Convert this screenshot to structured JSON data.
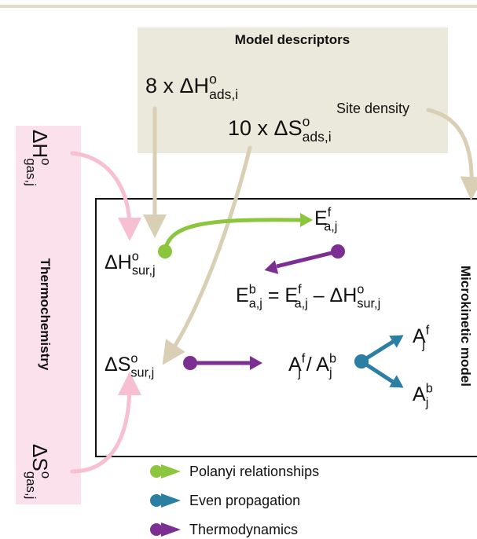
{
  "descriptors": {
    "title": "Model descriptors",
    "enthalpy": [
      {
        "text": "8 x ΔH",
        "pos": "base"
      },
      {
        "text": "o",
        "pos": "sup"
      },
      {
        "text": "ads,i",
        "pos": "sub"
      }
    ],
    "entropy": [
      {
        "text": "10 x ΔS",
        "pos": "base"
      },
      {
        "text": "o",
        "pos": "sup"
      },
      {
        "text": "ads,i",
        "pos": "sub"
      }
    ],
    "site_density": "Site density"
  },
  "thermochemistry": {
    "title": "Thermochemistry",
    "enthalpy": [
      {
        "text": "ΔH",
        "pos": "base"
      },
      {
        "text": "o",
        "pos": "sup"
      },
      {
        "text": "gas,j",
        "pos": "sub"
      }
    ],
    "entropy": [
      {
        "text": "ΔS",
        "pos": "base"
      },
      {
        "text": "o",
        "pos": "sup"
      },
      {
        "text": "gas,j",
        "pos": "sub"
      }
    ]
  },
  "microkinetic_model": {
    "title": "Microkinetic model",
    "surface_enthalpy": [
      {
        "text": "ΔH",
        "pos": "base"
      },
      {
        "text": "o",
        "pos": "sup"
      },
      {
        "text": "sur,j",
        "pos": "sub"
      }
    ],
    "forward_barrier": [
      {
        "text": "E",
        "pos": "base"
      },
      {
        "text": "f",
        "pos": "sup"
      },
      {
        "text": "a,j",
        "pos": "sub"
      }
    ],
    "equation": [
      {
        "text": "E",
        "pos": "base"
      },
      {
        "text": "b",
        "pos": "sup"
      },
      {
        "text": "a,j",
        "pos": "sub"
      },
      {
        "text": " = E",
        "pos": "base"
      },
      {
        "text": "f",
        "pos": "sup"
      },
      {
        "text": "a,j",
        "pos": "sub"
      },
      {
        "text": " – ΔH",
        "pos": "base"
      },
      {
        "text": "o",
        "pos": "sup"
      },
      {
        "text": "sur,j",
        "pos": "sub"
      }
    ],
    "surface_entropy": [
      {
        "text": "ΔS",
        "pos": "base"
      },
      {
        "text": "o",
        "pos": "sup"
      },
      {
        "text": "sur,j",
        "pos": "sub"
      }
    ],
    "prefactor_ratio": [
      {
        "text": "A",
        "pos": "base"
      },
      {
        "text": "f",
        "pos": "sup"
      },
      {
        "text": "j",
        "pos": "sub"
      },
      {
        "text": " / A",
        "pos": "base"
      },
      {
        "text": "b",
        "pos": "sup"
      },
      {
        "text": "j",
        "pos": "sub"
      }
    ],
    "forward_prefactor": [
      {
        "text": "A",
        "pos": "base"
      },
      {
        "text": "f",
        "pos": "sup"
      },
      {
        "text": "j",
        "pos": "sub"
      }
    ],
    "backward_prefactor": [
      {
        "text": "A",
        "pos": "base"
      },
      {
        "text": "b",
        "pos": "sup"
      },
      {
        "text": "j",
        "pos": "sub"
      }
    ]
  },
  "legend": [
    {
      "label": "Polanyi relationships",
      "color": "#8cc63e"
    },
    {
      "label": "Even propagation",
      "color": "#2b7fa3"
    },
    {
      "label": "Thermodynamics",
      "color": "#7b2f93"
    }
  ]
}
